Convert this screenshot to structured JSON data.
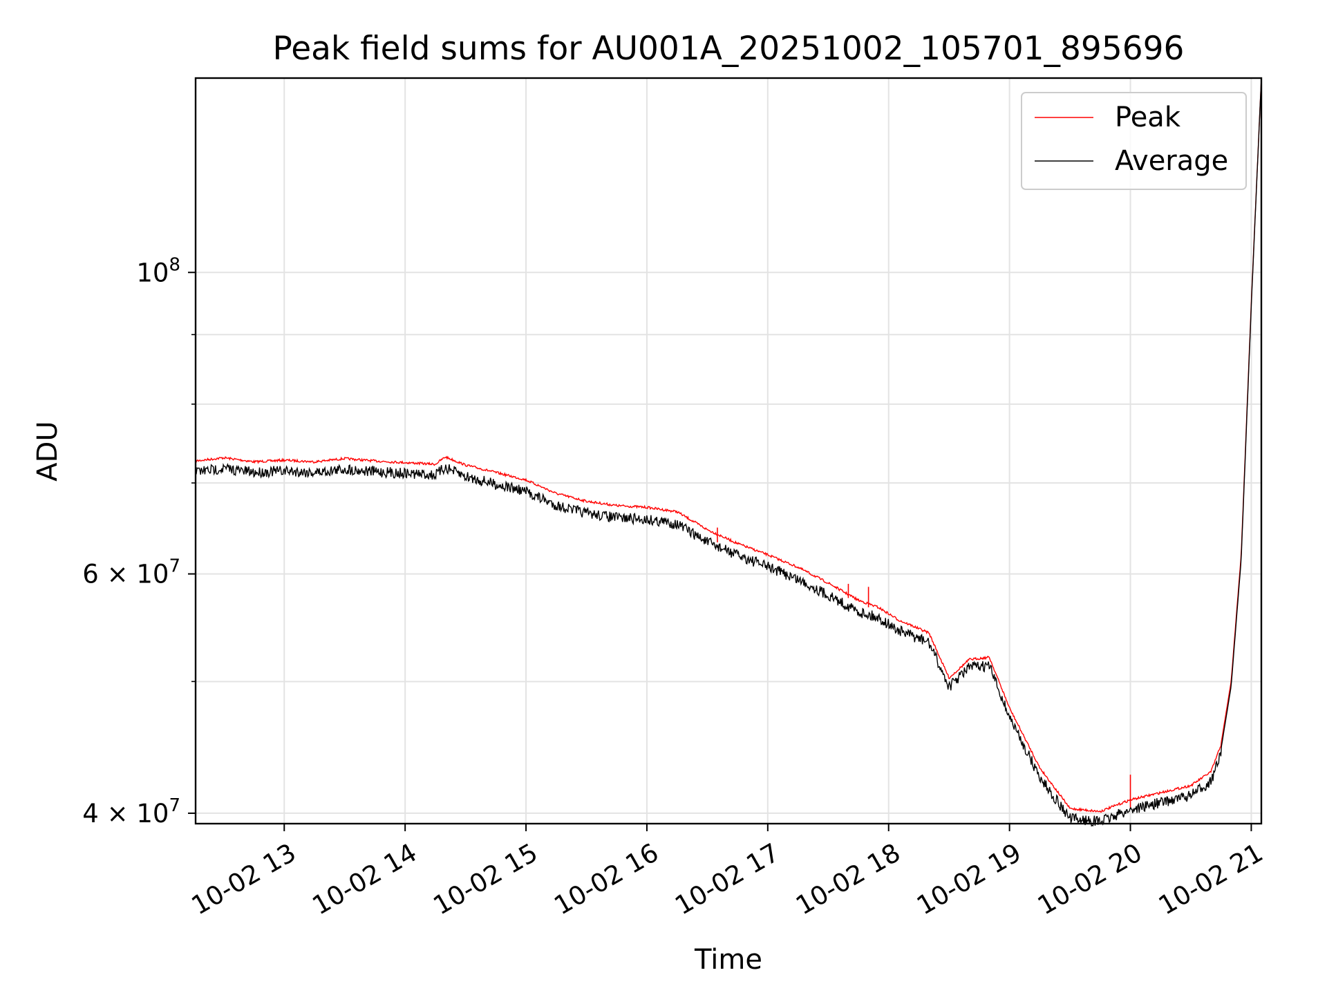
{
  "chart_data": {
    "type": "line",
    "title": "Peak field sums for AU001A_20251002_105701_895696",
    "xlabel": "Time",
    "ylabel": "ADU",
    "x_tick_labels": [
      "10-02 13",
      "10-02 14",
      "10-02 15",
      "10-02 16",
      "10-02 17",
      "10-02 18",
      "10-02 19",
      "10-02 20",
      "10-02 21"
    ],
    "y_tick_labels": [
      {
        "value": 40000000,
        "mantissa": "4",
        "exp": "7"
      },
      {
        "value": 60000000,
        "mantissa": "6",
        "exp": "7"
      },
      {
        "value": 100000000,
        "mantissa": "",
        "exp": "8"
      }
    ],
    "y_minor_ticks": [
      50000000,
      70000000,
      80000000,
      90000000
    ],
    "y_scale": "log",
    "xlim": [
      "10-02 12:16",
      "10-02 21:05"
    ],
    "ylim": [
      39300000,
      139000000
    ],
    "grid": true,
    "legend_position": "top-right",
    "x": [
      "12:16",
      "12:30",
      "12:45",
      "13:00",
      "13:15",
      "13:30",
      "13:45",
      "14:00",
      "14:15",
      "14:20",
      "14:30",
      "14:45",
      "15:00",
      "15:15",
      "15:30",
      "15:45",
      "16:00",
      "16:15",
      "16:30",
      "16:45",
      "17:00",
      "17:15",
      "17:30",
      "17:45",
      "17:55",
      "18:05",
      "18:20",
      "18:30",
      "18:40",
      "18:50",
      "19:00",
      "19:15",
      "19:30",
      "19:45",
      "20:00",
      "20:15",
      "20:30",
      "20:40",
      "20:45",
      "20:50",
      "20:55",
      "21:00",
      "21:05"
    ],
    "series": [
      {
        "name": "Peak",
        "color": "#ff0000",
        "values": [
          72800000,
          73200000,
          72700000,
          72900000,
          72700000,
          73100000,
          72800000,
          72600000,
          72400000,
          73300000,
          72300000,
          71400000,
          70500000,
          68900000,
          68000000,
          67500000,
          67300000,
          66800000,
          64800000,
          63300000,
          62100000,
          60800000,
          59200000,
          57500000,
          56800000,
          55600000,
          54400000,
          50400000,
          52000000,
          52200000,
          47900000,
          43300000,
          40400000,
          40200000,
          41000000,
          41500000,
          42000000,
          43000000,
          45000000,
          50000000,
          62000000,
          95000000,
          139000000
        ]
      },
      {
        "name": "Average",
        "color": "#000000",
        "values": [
          72000000,
          72400000,
          71900000,
          72100000,
          71900000,
          72300000,
          72000000,
          71800000,
          71600000,
          72500000,
          71400000,
          70500000,
          69600000,
          68000000,
          67100000,
          66600000,
          66400000,
          65900000,
          63900000,
          62500000,
          61300000,
          60000000,
          58400000,
          56800000,
          56200000,
          55000000,
          53900000,
          50000000,
          51700000,
          51800000,
          47500000,
          42900000,
          40000000,
          39800000,
          40600000,
          41100000,
          41600000,
          42600000,
          44600000,
          49600000,
          61500000,
          94500000,
          139000000
        ]
      }
    ],
    "annotations": [
      "spikes in Peak near 16:35, 17:40, 17:50, 20:00"
    ]
  }
}
